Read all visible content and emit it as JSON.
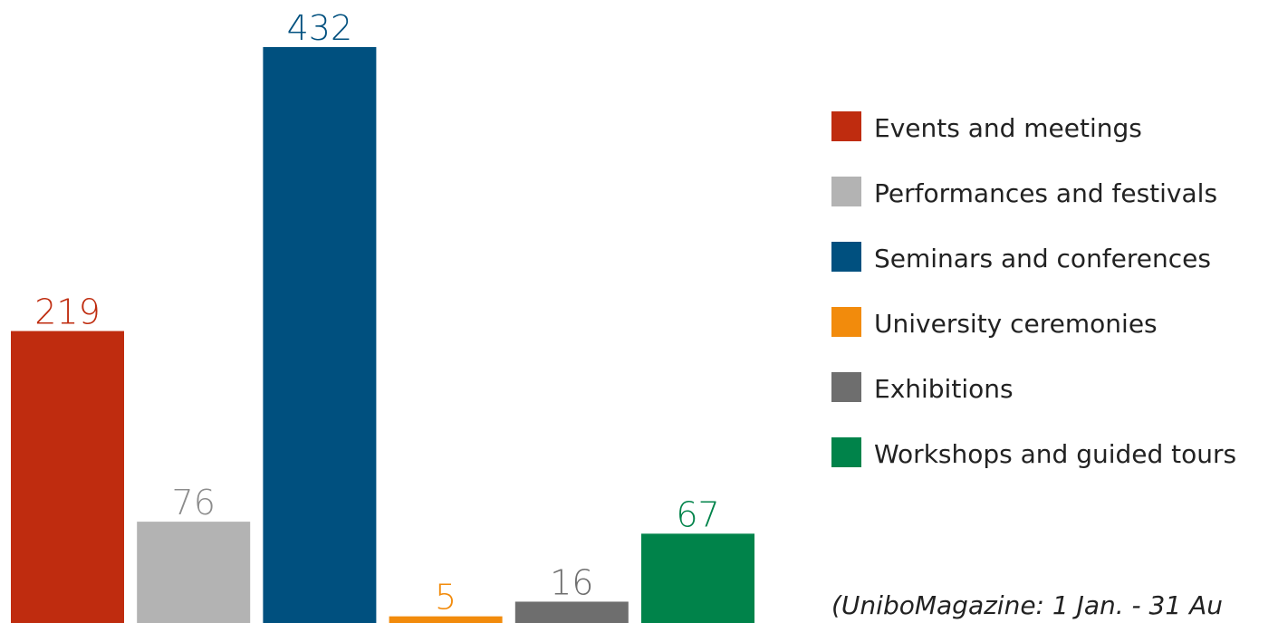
{
  "chart_data": {
    "type": "bar",
    "categories": [
      "Events and meetings",
      "Performances and festivals",
      "Seminars and conferences",
      "University ceremonies",
      "Exhibitions",
      "Workshops and guided tours"
    ],
    "values": [
      219,
      76,
      432,
      5,
      16,
      67
    ],
    "colors": [
      "#bf2c0f",
      "#b3b3b3",
      "#00507f",
      "#f28b0c",
      "#6e6e6e",
      "#00834a"
    ],
    "label_colors": [
      "#bf2c0f",
      "#8c8c8c",
      "#00507f",
      "#f28b0c",
      "#6e6e6e",
      "#00834a"
    ],
    "legend": "right",
    "note": "(UniboMagazine: 1 Jan. - 31 Au"
  }
}
